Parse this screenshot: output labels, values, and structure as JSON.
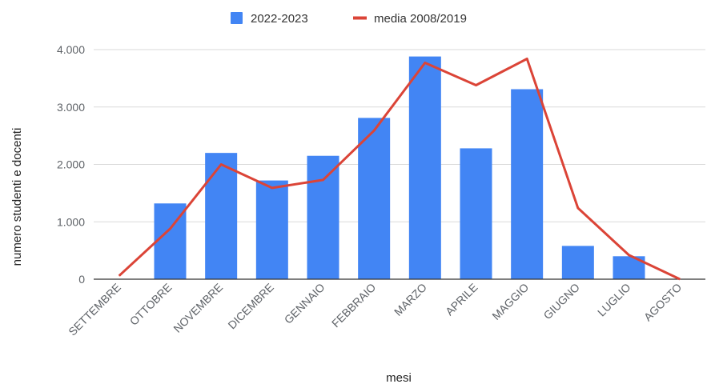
{
  "chart_data": {
    "type": "bar",
    "xlabel": "mesi",
    "ylabel": "numero studenti e docenti",
    "categories": [
      "SETTEMBRE",
      "OTTOBRE",
      "NOVEMBRE",
      "DICEMBRE",
      "GENNAIO",
      "FEBBRAIO",
      "MARZO",
      "APRILE",
      "MAGGIO",
      "GIUGNO",
      "LUGLIO",
      "AGOSTO"
    ],
    "ylim": [
      0,
      4000
    ],
    "yticks": [
      0,
      1000,
      2000,
      3000,
      4000
    ],
    "ytick_labels": [
      "0",
      "1.000",
      "2.000",
      "3.000",
      "4.000"
    ],
    "grid": true,
    "legend": "top",
    "series": [
      {
        "name": "2022-2023",
        "type": "bar",
        "color": "#4285f4",
        "values": [
          0,
          1320,
          2200,
          1720,
          2150,
          2810,
          3880,
          2280,
          3310,
          580,
          400,
          0
        ]
      },
      {
        "name": "media 2008/2019",
        "type": "line",
        "color": "#db4437",
        "values": [
          60,
          880,
          2000,
          1590,
          1730,
          2590,
          3770,
          3380,
          3840,
          1240,
          420,
          0
        ]
      }
    ]
  }
}
